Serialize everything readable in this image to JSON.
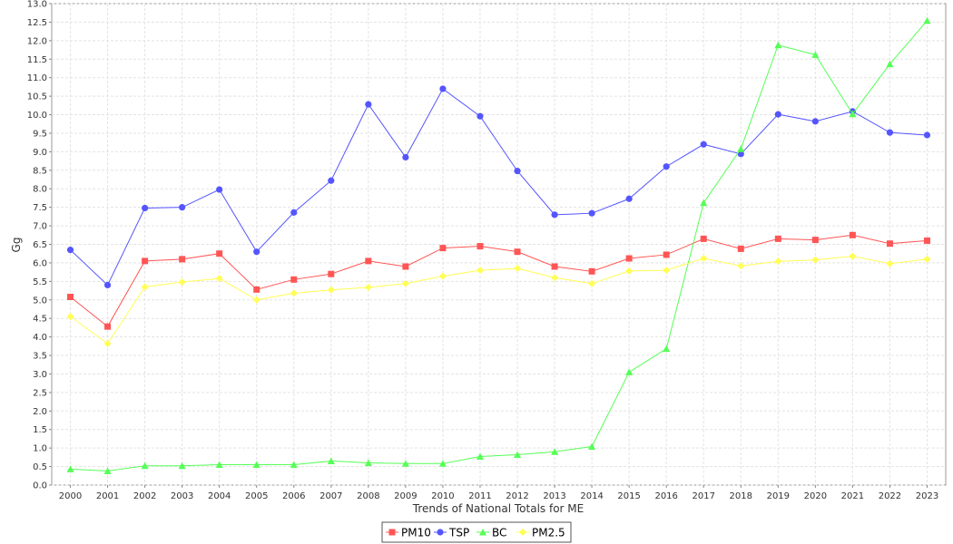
{
  "chart_data": {
    "type": "line",
    "title": "",
    "xlabel": "Trends of National Totals for ME",
    "ylabel": "Gg",
    "x": [
      "2000",
      "2001",
      "2002",
      "2003",
      "2004",
      "2005",
      "2006",
      "2007",
      "2008",
      "2009",
      "2010",
      "2011",
      "2012",
      "2013",
      "2014",
      "2015",
      "2016",
      "2017",
      "2018",
      "2019",
      "2020",
      "2021",
      "2022",
      "2023"
    ],
    "ylim": [
      0,
      13
    ],
    "yticks": [
      "0.0",
      "0.5",
      "1.0",
      "1.5",
      "2.0",
      "2.5",
      "3.0",
      "3.5",
      "4.0",
      "4.5",
      "5.0",
      "5.5",
      "6.0",
      "6.5",
      "7.0",
      "7.5",
      "8.0",
      "8.5",
      "9.0",
      "9.5",
      "10.0",
      "10.5",
      "11.0",
      "11.5",
      "12.0",
      "12.5",
      "13.0"
    ],
    "grid": true,
    "legend_position": "bottom",
    "series": [
      {
        "name": "PM10",
        "color": "#ff5555",
        "marker": "square",
        "values": [
          5.08,
          4.28,
          6.05,
          6.1,
          6.25,
          5.28,
          5.55,
          5.7,
          6.05,
          5.9,
          6.4,
          6.45,
          6.3,
          5.9,
          5.77,
          6.12,
          6.22,
          6.65,
          6.38,
          6.65,
          6.62,
          6.75,
          6.52,
          6.6
        ]
      },
      {
        "name": "TSP",
        "color": "#5555ff",
        "marker": "circle",
        "values": [
          6.35,
          5.4,
          7.48,
          7.5,
          7.98,
          6.3,
          7.36,
          8.22,
          10.28,
          8.85,
          10.7,
          9.96,
          8.48,
          7.3,
          7.34,
          7.73,
          8.6,
          9.2,
          8.94,
          10.01,
          9.82,
          10.09,
          9.52,
          9.45
        ]
      },
      {
        "name": "BC",
        "color": "#55ff55",
        "marker": "triangle",
        "values": [
          0.43,
          0.38,
          0.52,
          0.52,
          0.55,
          0.55,
          0.55,
          0.65,
          0.6,
          0.58,
          0.58,
          0.77,
          0.82,
          0.9,
          1.04,
          3.05,
          3.68,
          7.62,
          9.08,
          11.88,
          11.62,
          10.02,
          11.37,
          12.54
        ]
      },
      {
        "name": "PM2.5",
        "color": "#ffff55",
        "marker": "diamond",
        "values": [
          4.55,
          3.82,
          5.35,
          5.48,
          5.58,
          5.0,
          5.18,
          5.27,
          5.34,
          5.44,
          5.64,
          5.8,
          5.85,
          5.6,
          5.44,
          5.78,
          5.8,
          6.12,
          5.92,
          6.04,
          6.08,
          6.18,
          5.98,
          6.1
        ]
      }
    ]
  }
}
